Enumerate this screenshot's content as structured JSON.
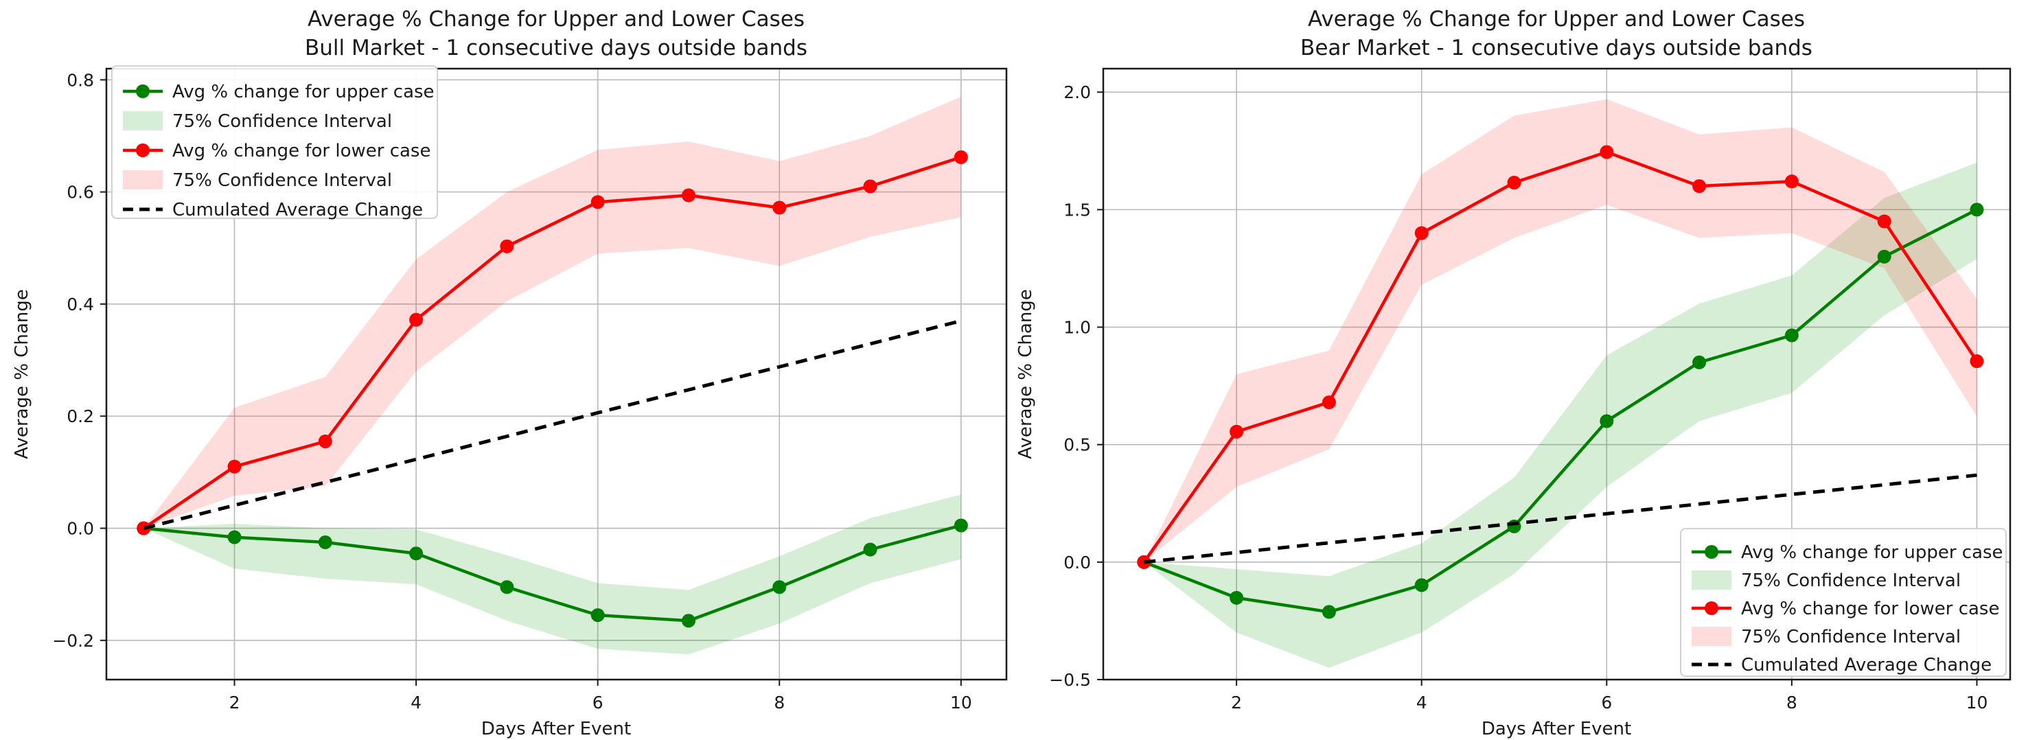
{
  "figure": {
    "background": "#ffffff",
    "text_color": "#1a1a1a",
    "grid_color": "#b9b9b9",
    "spine_color": "#1a1a1a",
    "upper_case_color": "#008000",
    "lower_case_color": "#ff0000",
    "upper_band_color": "rgba(0,150,0,0.16)",
    "lower_band_color": "rgba(255,40,40,0.16)",
    "cumulated_color": "#000000"
  },
  "chart_data": [
    {
      "type": "line",
      "title": "Average % Change for Upper and Lower Cases",
      "subtitle": "Bull Market - 1 consecutive days outside bands",
      "xlabel": "Days After Event",
      "ylabel": "Average % Change",
      "x": [
        1,
        2,
        3,
        4,
        5,
        6,
        7,
        8,
        9,
        10
      ],
      "xlim": [
        0.59,
        10.5
      ],
      "ylim": [
        -0.27,
        0.82
      ],
      "xticks": [
        2,
        4,
        6,
        8,
        10
      ],
      "xtick_labels": [
        "2",
        "4",
        "6",
        "8",
        "10"
      ],
      "yticks": [
        0.8,
        0.6,
        0.4,
        0.2,
        0.0,
        -0.2
      ],
      "ytick_labels": [
        "0.8",
        "0.6",
        "0.4",
        "0.2",
        "0.0",
        "−0.2"
      ],
      "grid": true,
      "legend_position": "upper left",
      "series": [
        {
          "name": "Avg % change for upper case",
          "kind": "line",
          "color": "#008000",
          "values": [
            0.0,
            -0.016,
            -0.025,
            -0.045,
            -0.105,
            -0.155,
            -0.165,
            -0.105,
            -0.038,
            0.005
          ]
        },
        {
          "name": "75% Confidence Interval",
          "kind": "band",
          "color": "rgba(0,150,0,0.16)",
          "upper": [
            0.0,
            0.008,
            0.0,
            -0.002,
            -0.048,
            -0.098,
            -0.11,
            -0.05,
            0.018,
            0.06
          ],
          "lower": [
            0.0,
            -0.072,
            -0.09,
            -0.1,
            -0.165,
            -0.215,
            -0.225,
            -0.17,
            -0.098,
            -0.055
          ]
        },
        {
          "name": "Avg % change for lower case",
          "kind": "line",
          "color": "#ff0000",
          "values": [
            0.0,
            0.11,
            0.155,
            0.372,
            0.503,
            0.582,
            0.594,
            0.572,
            0.61,
            0.662
          ]
        },
        {
          "name": "75% Confidence Interval",
          "kind": "band",
          "color": "rgba(255,40,40,0.16)",
          "upper": [
            0.0,
            0.215,
            0.27,
            0.48,
            0.6,
            0.675,
            0.69,
            0.655,
            0.7,
            0.77
          ],
          "lower": [
            0.0,
            0.058,
            0.075,
            0.28,
            0.405,
            0.49,
            0.5,
            0.468,
            0.52,
            0.555
          ]
        },
        {
          "name": "Cumulated Average Change",
          "kind": "dashed",
          "color": "#000000",
          "values": [
            0.0,
            0.041,
            0.082,
            0.123,
            0.164,
            0.206,
            0.247,
            0.288,
            0.329,
            0.37
          ]
        }
      ]
    },
    {
      "type": "line",
      "title": "Average % Change for Upper and Lower Cases",
      "subtitle": "Bear Market - 1 consecutive days outside bands",
      "xlabel": "Days After Event",
      "ylabel": "Average % Change",
      "x": [
        1,
        2,
        3,
        4,
        5,
        6,
        7,
        8,
        9,
        10
      ],
      "xlim": [
        0.56,
        10.36
      ],
      "ylim": [
        -0.5,
        2.1
      ],
      "xticks": [
        2,
        4,
        6,
        8,
        10
      ],
      "xtick_labels": [
        "2",
        "4",
        "6",
        "8",
        "10"
      ],
      "yticks": [
        2.0,
        1.5,
        1.0,
        0.5,
        0.0,
        -0.5
      ],
      "ytick_labels": [
        "2.0",
        "1.5",
        "1.0",
        "0.5",
        "0.0",
        "−0.5"
      ],
      "grid": true,
      "legend_position": "lower right",
      "series": [
        {
          "name": "Avg % change for upper case",
          "kind": "line",
          "color": "#008000",
          "values": [
            0.0,
            -0.152,
            -0.212,
            -0.098,
            0.152,
            0.6,
            0.85,
            0.965,
            1.3,
            1.5
          ]
        },
        {
          "name": "75% Confidence Interval",
          "kind": "band",
          "color": "rgba(0,150,0,0.16)",
          "upper": [
            0.0,
            -0.03,
            -0.06,
            0.08,
            0.36,
            0.88,
            1.1,
            1.22,
            1.55,
            1.7
          ],
          "lower": [
            0.0,
            -0.3,
            -0.45,
            -0.3,
            -0.05,
            0.32,
            0.6,
            0.72,
            1.05,
            1.29
          ]
        },
        {
          "name": "Avg % change for lower case",
          "kind": "line",
          "color": "#ff0000",
          "values": [
            0.0,
            0.555,
            0.68,
            1.4,
            1.615,
            1.745,
            1.6,
            1.62,
            1.45,
            0.855
          ]
        },
        {
          "name": "75% Confidence Interval",
          "kind": "band",
          "color": "rgba(255,40,40,0.16)",
          "upper": [
            0.0,
            0.8,
            0.9,
            1.65,
            1.9,
            1.97,
            1.82,
            1.85,
            1.66,
            1.12
          ],
          "lower": [
            0.0,
            0.32,
            0.48,
            1.18,
            1.38,
            1.52,
            1.38,
            1.4,
            1.25,
            0.62
          ]
        },
        {
          "name": "Cumulated Average Change",
          "kind": "dashed",
          "color": "#000000",
          "values": [
            0.0,
            0.041,
            0.082,
            0.123,
            0.164,
            0.206,
            0.247,
            0.288,
            0.329,
            0.37
          ]
        }
      ]
    }
  ]
}
